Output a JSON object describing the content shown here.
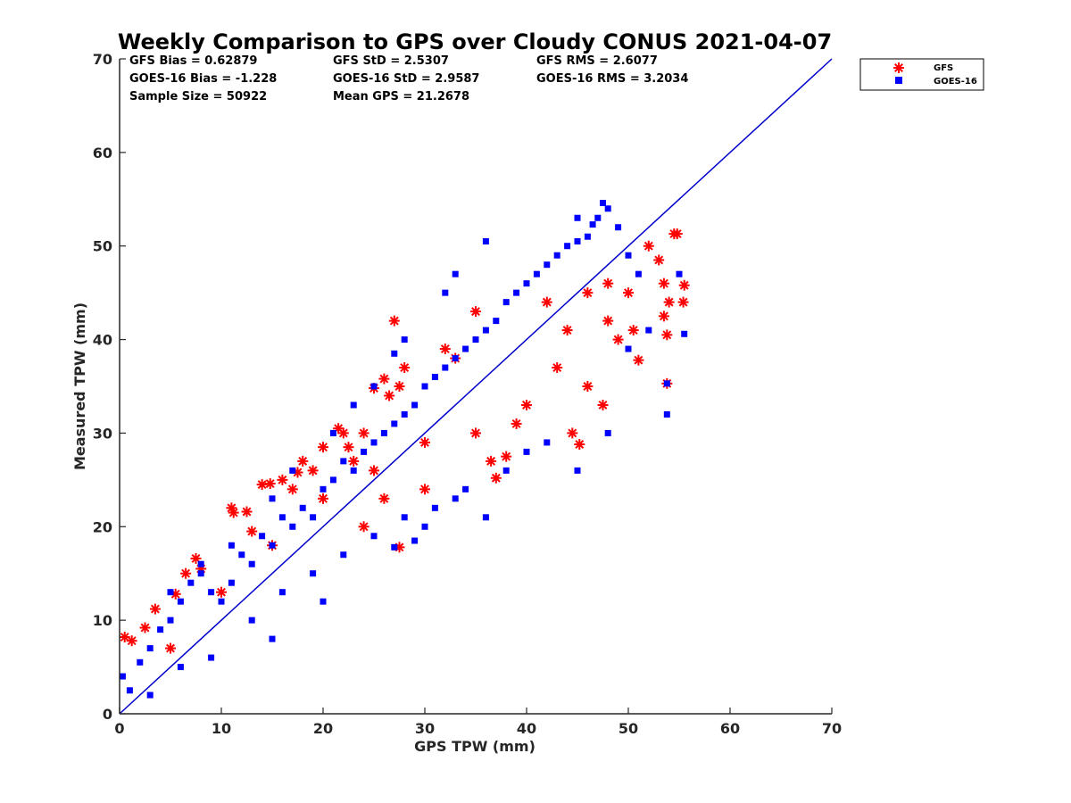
{
  "chart_data": {
    "type": "scatter",
    "title": "Weekly Comparison to GPS over Cloudy CONUS 2021-04-07",
    "xlabel": "GPS TPW (mm)",
    "ylabel": "Measured TPW (mm)",
    "xlim": [
      0,
      70
    ],
    "ylim": [
      0,
      70
    ],
    "xticks": [
      "0",
      "10",
      "20",
      "30",
      "40",
      "50",
      "60",
      "70"
    ],
    "yticks": [
      "0",
      "10",
      "20",
      "30",
      "40",
      "50",
      "60",
      "70"
    ],
    "grid": false,
    "legend_position": "top-right-outside",
    "reference_line": {
      "x": [
        0,
        70
      ],
      "y": [
        0,
        70
      ],
      "color": "#0000cc"
    },
    "stats": [
      [
        "GFS Bias = 0.62879",
        "GFS StD = 2.5307",
        "GFS RMS = 2.6077"
      ],
      [
        "GOES-16 Bias = -1.228",
        "GOES-16 StD = 2.9587",
        "GOES-16 RMS = 3.2034"
      ],
      [
        "Sample Size = 50922",
        "Mean GPS = 21.2678"
      ]
    ],
    "series": [
      {
        "name": "GFS",
        "marker": "asterisk",
        "color": "#ff0000",
        "points": [
          [
            0.5,
            8.2
          ],
          [
            1.2,
            7.8
          ],
          [
            2.5,
            9.2
          ],
          [
            3.5,
            11.2
          ],
          [
            5.5,
            12.8
          ],
          [
            6.5,
            15
          ],
          [
            7.5,
            16.6
          ],
          [
            8,
            15.5
          ],
          [
            11,
            22
          ],
          [
            11.2,
            21.5
          ],
          [
            12.5,
            21.6
          ],
          [
            13,
            19.5
          ],
          [
            14,
            24.5
          ],
          [
            14.8,
            24.6
          ],
          [
            16,
            25
          ],
          [
            17,
            24
          ],
          [
            17.5,
            25.8
          ],
          [
            18,
            27
          ],
          [
            19,
            26
          ],
          [
            20,
            28.5
          ],
          [
            21.5,
            30.5
          ],
          [
            22,
            30
          ],
          [
            22.5,
            28.5
          ],
          [
            23,
            27
          ],
          [
            24,
            30
          ],
          [
            25,
            34.8
          ],
          [
            26,
            35.8
          ],
          [
            26.5,
            34
          ],
          [
            27,
            42
          ],
          [
            27.5,
            35
          ],
          [
            28,
            37
          ],
          [
            27.5,
            17.8
          ],
          [
            26,
            23
          ],
          [
            24,
            20
          ],
          [
            30,
            24
          ],
          [
            32,
            39
          ],
          [
            33,
            38
          ],
          [
            35,
            43
          ],
          [
            36.5,
            27
          ],
          [
            37,
            25.2
          ],
          [
            38,
            27.5
          ],
          [
            39,
            31
          ],
          [
            42,
            44
          ],
          [
            44,
            41
          ],
          [
            44.5,
            30
          ],
          [
            45.2,
            28.8
          ],
          [
            46,
            35
          ],
          [
            47.5,
            33
          ],
          [
            48,
            46
          ],
          [
            49,
            40
          ],
          [
            50,
            45
          ],
          [
            50.5,
            41
          ],
          [
            51,
            37.8
          ],
          [
            52,
            50
          ],
          [
            53,
            48.5
          ],
          [
            53.5,
            46
          ],
          [
            53.5,
            42.5
          ],
          [
            54,
            44
          ],
          [
            53.8,
            40.5
          ],
          [
            53.8,
            35.3
          ],
          [
            54.5,
            51.3
          ],
          [
            54.8,
            51.3
          ],
          [
            55.4,
            44
          ],
          [
            55.5,
            45.8
          ],
          [
            48,
            42
          ],
          [
            46,
            45
          ],
          [
            43,
            37
          ],
          [
            40,
            33
          ],
          [
            35,
            30
          ],
          [
            30,
            29
          ],
          [
            25,
            26
          ],
          [
            20,
            23
          ],
          [
            15,
            18
          ],
          [
            10,
            13
          ],
          [
            5,
            7
          ]
        ]
      },
      {
        "name": "GOES-16",
        "marker": "square",
        "color": "#0000ff",
        "points": [
          [
            0.3,
            4
          ],
          [
            1,
            2.5
          ],
          [
            2,
            5.5
          ],
          [
            3,
            7
          ],
          [
            4,
            9
          ],
          [
            5,
            10
          ],
          [
            6,
            12
          ],
          [
            7,
            14
          ],
          [
            8,
            15
          ],
          [
            9,
            13
          ],
          [
            10,
            12
          ],
          [
            11,
            14
          ],
          [
            12,
            17
          ],
          [
            13,
            16
          ],
          [
            14,
            19
          ],
          [
            15,
            18
          ],
          [
            16,
            21
          ],
          [
            17,
            20
          ],
          [
            18,
            22
          ],
          [
            19,
            21
          ],
          [
            20,
            24
          ],
          [
            21,
            25
          ],
          [
            22,
            27
          ],
          [
            23,
            26
          ],
          [
            24,
            28
          ],
          [
            25,
            29
          ],
          [
            26,
            30
          ],
          [
            27,
            31
          ],
          [
            28,
            32
          ],
          [
            29,
            33
          ],
          [
            30,
            35
          ],
          [
            31,
            36
          ],
          [
            32,
            37
          ],
          [
            33,
            38
          ],
          [
            34,
            39
          ],
          [
            35,
            40
          ],
          [
            36,
            41
          ],
          [
            37,
            42
          ],
          [
            38,
            44
          ],
          [
            39,
            45
          ],
          [
            40,
            46
          ],
          [
            41,
            47
          ],
          [
            42,
            48
          ],
          [
            43,
            49
          ],
          [
            44,
            50
          ],
          [
            45,
            50.5
          ],
          [
            46,
            51
          ],
          [
            47,
            53
          ],
          [
            48,
            54
          ],
          [
            49,
            52
          ],
          [
            50,
            49
          ],
          [
            51,
            47
          ],
          [
            47.5,
            54.6
          ],
          [
            46.5,
            52.3
          ],
          [
            45,
            53
          ],
          [
            36,
            50.5
          ],
          [
            33,
            47
          ],
          [
            32,
            45
          ],
          [
            28,
            40
          ],
          [
            27,
            38.5
          ],
          [
            25,
            35
          ],
          [
            23,
            33
          ],
          [
            21,
            30
          ],
          [
            17,
            26
          ],
          [
            15,
            23
          ],
          [
            11,
            18
          ],
          [
            8,
            16
          ],
          [
            5,
            13
          ],
          [
            13,
            10
          ],
          [
            16,
            13
          ],
          [
            19,
            15
          ],
          [
            22,
            17
          ],
          [
            25,
            19
          ],
          [
            28,
            21
          ],
          [
            31,
            22
          ],
          [
            34,
            24
          ],
          [
            36,
            21
          ],
          [
            38,
            26
          ],
          [
            40,
            28
          ],
          [
            42,
            29
          ],
          [
            45,
            26
          ],
          [
            48,
            30
          ],
          [
            53.8,
            32
          ],
          [
            53.8,
            35.3
          ],
          [
            55,
            47
          ],
          [
            55.5,
            40.6
          ],
          [
            52,
            41
          ],
          [
            50,
            39
          ],
          [
            29,
            18.5
          ],
          [
            30,
            20
          ],
          [
            33,
            23
          ],
          [
            27,
            17.8
          ],
          [
            9,
            6
          ],
          [
            6,
            5
          ],
          [
            3,
            2
          ],
          [
            15,
            8
          ],
          [
            20,
            12
          ]
        ]
      }
    ]
  }
}
